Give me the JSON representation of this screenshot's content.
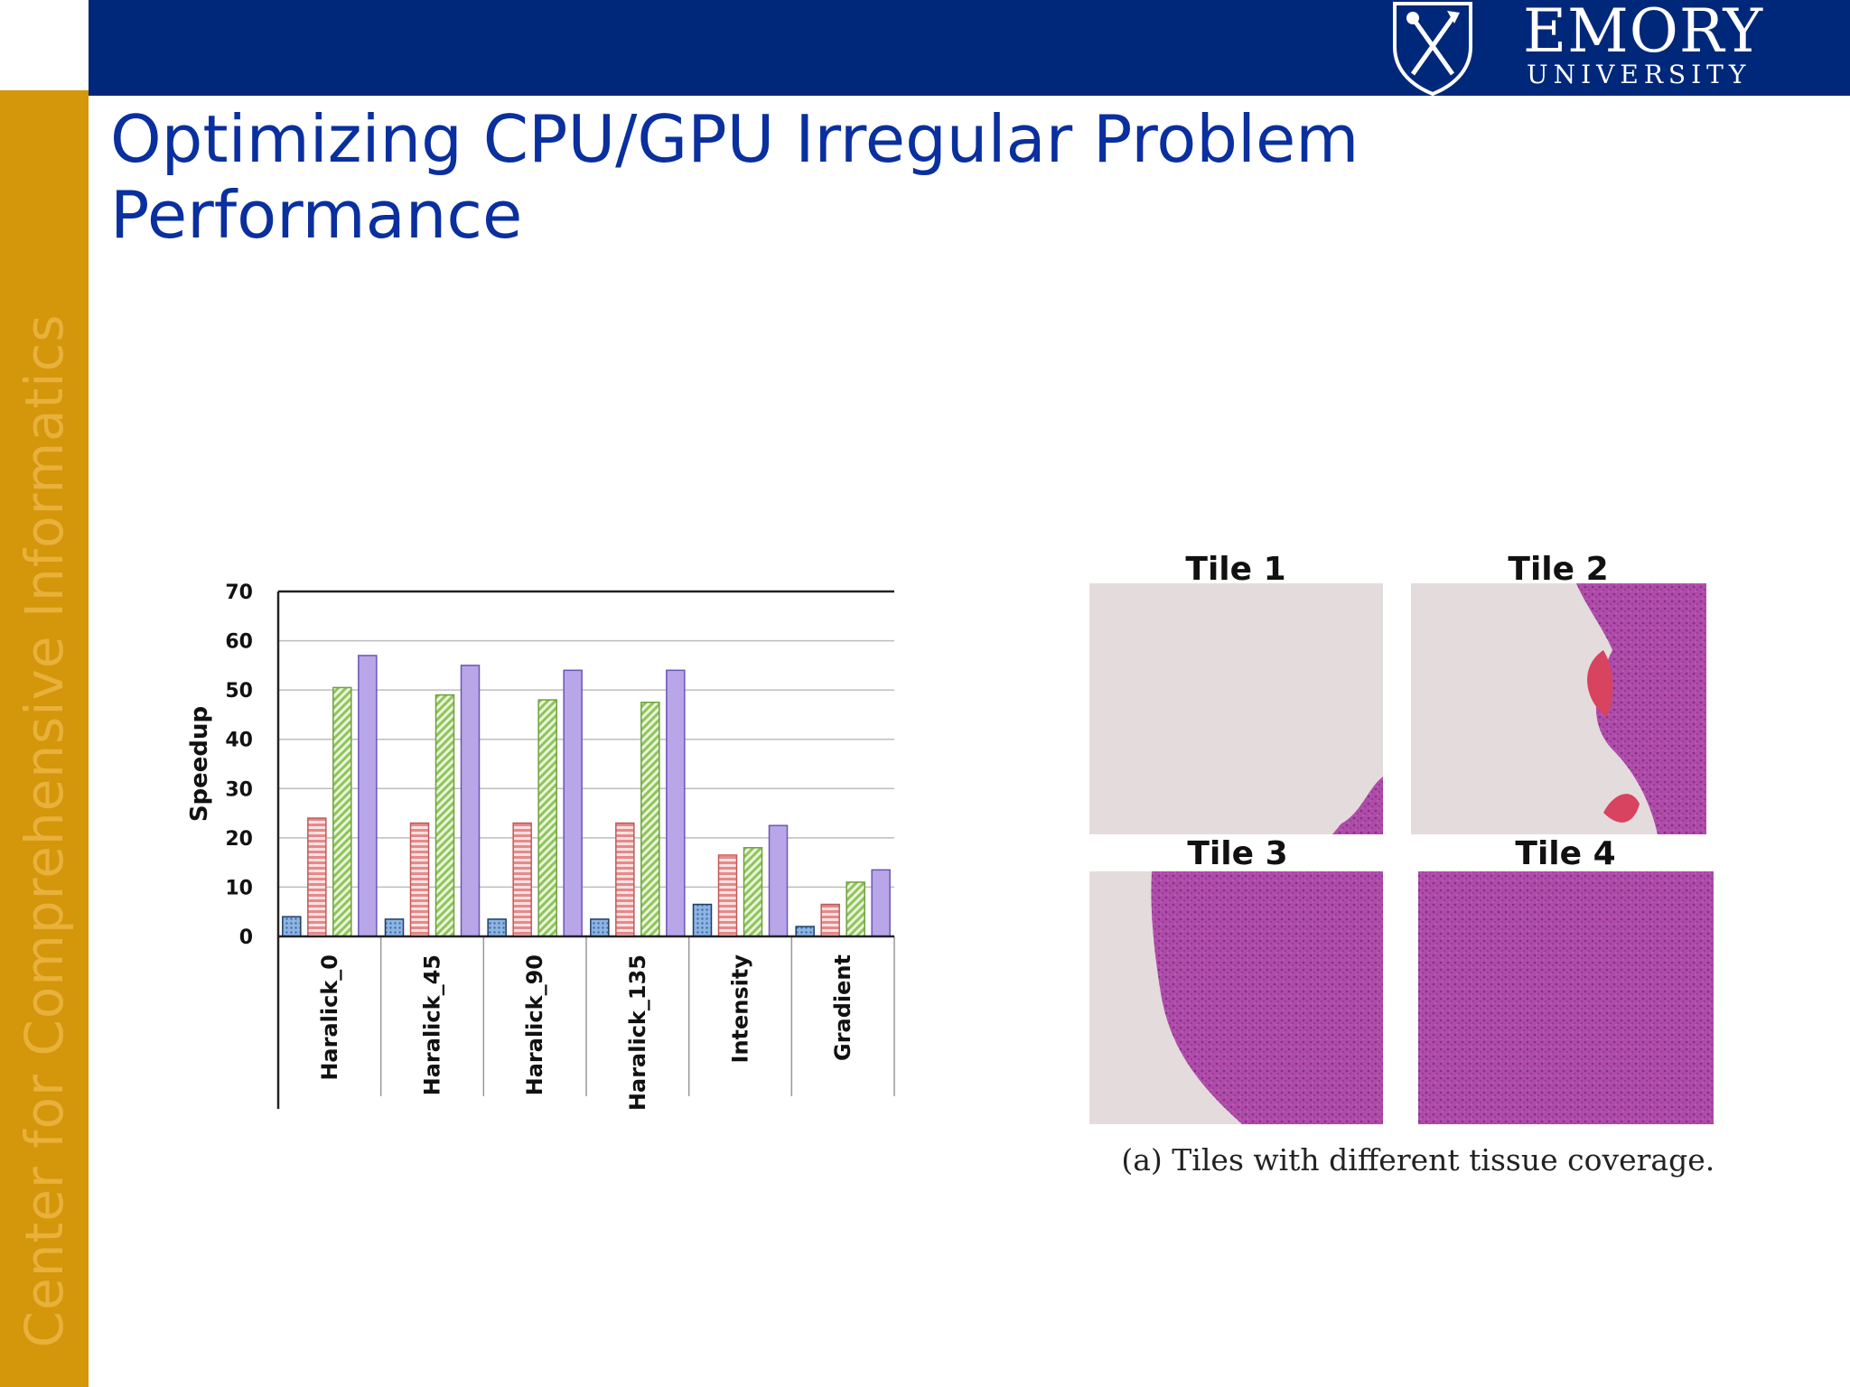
{
  "header": {
    "logo_name": "EMORY",
    "logo_sub": "UNIVERSITY",
    "colors": {
      "bar": "#00287a",
      "sidebar": "#d4960a"
    }
  },
  "sidebar": {
    "label": "Center for Comprehensive Informatics"
  },
  "slide": {
    "title": "Optimizing CPU/GPU Irregular Problem Performance"
  },
  "chart_data": {
    "type": "bar",
    "title": "",
    "xlabel": "",
    "ylabel": "Speedup",
    "ylim": [
      0,
      70
    ],
    "yticks": [
      0,
      10,
      20,
      30,
      40,
      50,
      60,
      70
    ],
    "grid": true,
    "legend": "none",
    "categories": [
      "Haralick_0",
      "Haralick_45",
      "Haralick_90",
      "Haralick_135",
      "Intensity",
      "Gradient"
    ],
    "series": [
      {
        "values": [
          4,
          3.5,
          3.5,
          3.5,
          6.5,
          2
        ],
        "color": "#8eb4e3",
        "pattern": "dots"
      },
      {
        "values": [
          24,
          23,
          23,
          23,
          16.5,
          6.5
        ],
        "color": "#f2a0a0",
        "pattern": "horizontal-lines"
      },
      {
        "values": [
          50.5,
          49,
          48,
          47.5,
          18,
          11
        ],
        "color": "#b9df86",
        "pattern": "diagonal-lines"
      },
      {
        "values": [
          57,
          55,
          54,
          54,
          22.5,
          13.5
        ],
        "color": "#b9a6e8",
        "pattern": "solid"
      }
    ]
  },
  "tiles": {
    "labels": [
      "Tile 1",
      "Tile 2",
      "Tile 3",
      "Tile 4"
    ],
    "caption": "(a) Tiles with different tissue coverage.",
    "tissue_colors": {
      "background": "#e4dcdc",
      "tissue": "#b04ca8",
      "dark": "#7e2f8e",
      "red": "#d8435f"
    }
  }
}
